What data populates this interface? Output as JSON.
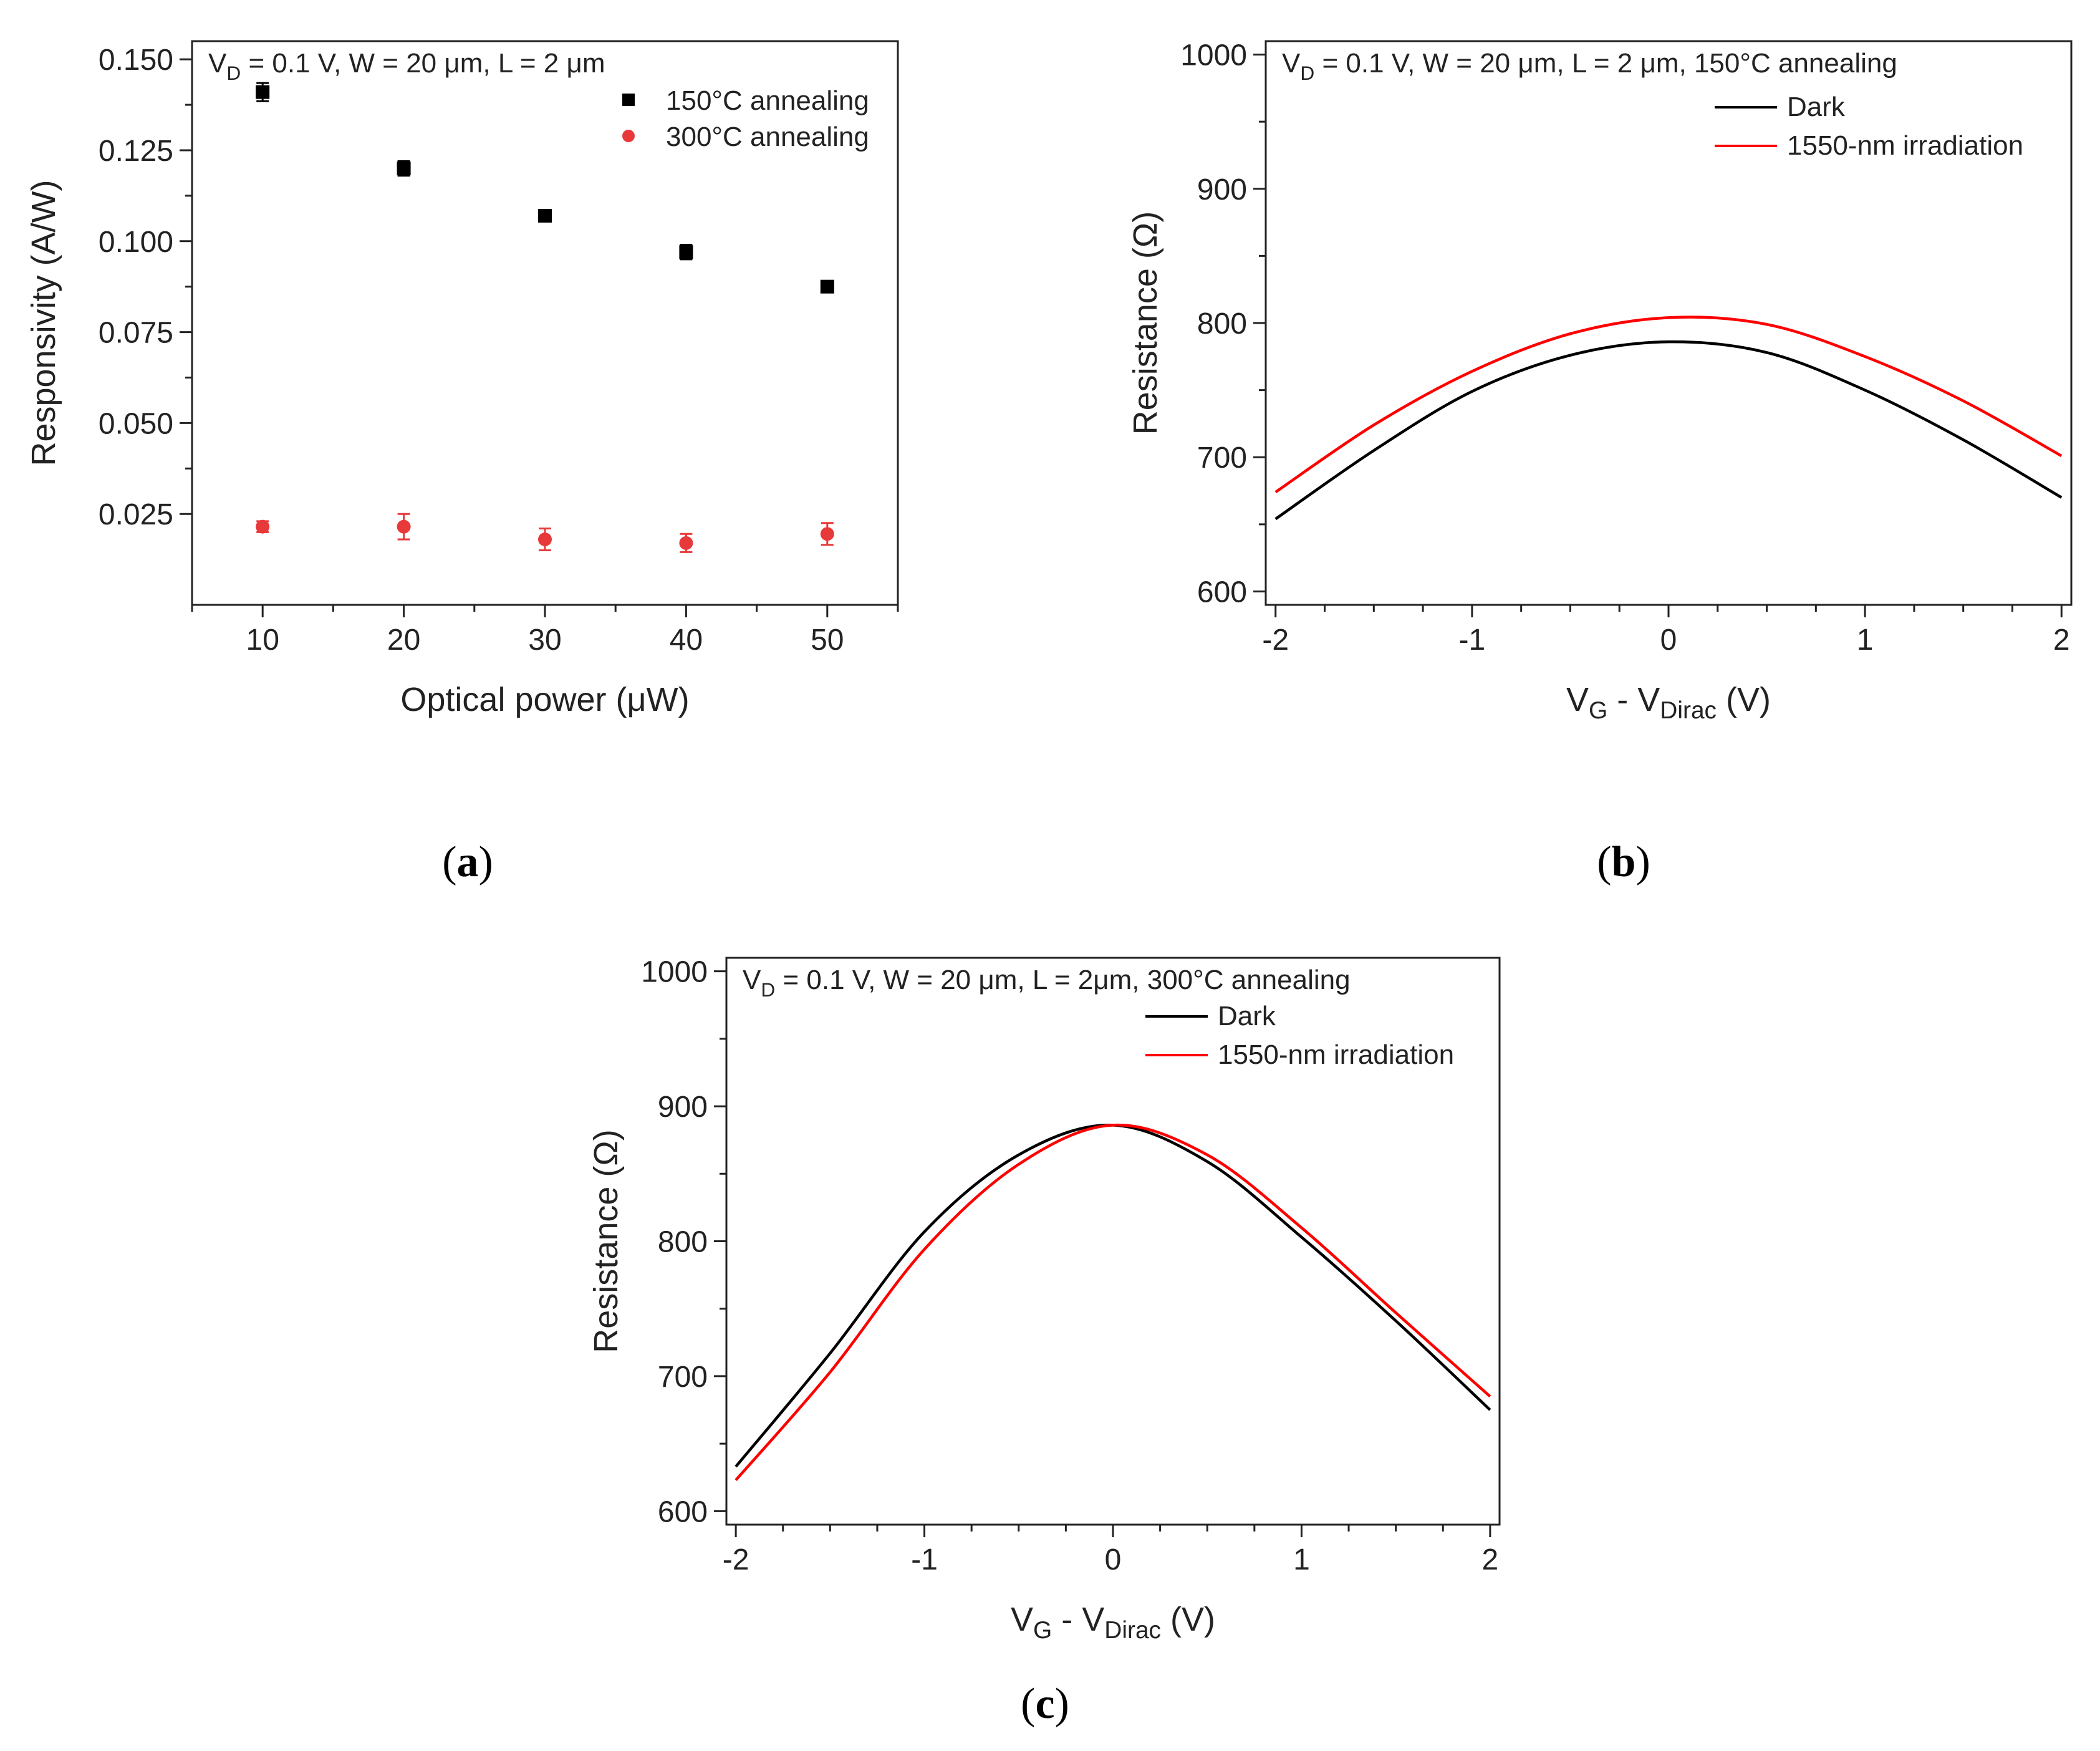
{
  "chart_data": [
    {
      "id": "a",
      "panel_label": "a",
      "type": "scatter",
      "annotation": "V_D = 0.1 V, W = 20 μm, L = 2 μm",
      "xlabel": "Optical power (μW)",
      "ylabel": "Responsivity (A/W)",
      "xlim": [
        5,
        55
      ],
      "ylim": [
        0,
        0.155
      ],
      "xticks": [
        10,
        20,
        30,
        40,
        50
      ],
      "yticks": [
        0.025,
        0.05,
        0.075,
        0.1,
        0.125,
        0.15
      ],
      "ytick_labels": [
        "0.025",
        "0.050",
        "0.075",
        "0.100",
        "0.125",
        "0.150"
      ],
      "series": [
        {
          "name": "150°C annealing",
          "color": "#000000",
          "marker": "square",
          "x": [
            10,
            20,
            30,
            40,
            50
          ],
          "y": [
            0.141,
            0.12,
            0.107,
            0.097,
            0.0875
          ],
          "err": [
            0.0025,
            0.002,
            0.001,
            0.002,
            0.001
          ]
        },
        {
          "name": "300°C annealing",
          "color": "#e8393a",
          "marker": "circle",
          "x": [
            10,
            20,
            30,
            40,
            50
          ],
          "y": [
            0.0215,
            0.0215,
            0.018,
            0.017,
            0.0195
          ],
          "err": [
            0.0015,
            0.0035,
            0.003,
            0.0025,
            0.003
          ]
        }
      ]
    },
    {
      "id": "b",
      "panel_label": "b",
      "type": "line",
      "annotation": "V_D = 0.1 V, W = 20 μm, L = 2 μm, 150°C annealing",
      "xlabel": "V_G - V_Dirac (V)",
      "ylabel": "Resistance (Ω)",
      "xlim": [
        -2.05,
        2.05
      ],
      "ylim": [
        590,
        1010
      ],
      "xticks": [
        -2,
        -1,
        0,
        1,
        2
      ],
      "yticks": [
        600,
        700,
        800,
        900,
        1000
      ],
      "x": [
        -2,
        -1.5,
        -1,
        -0.5,
        0,
        0.5,
        1,
        1.5,
        2
      ],
      "series": [
        {
          "name": "Dark",
          "color": "#000000",
          "values": [
            654,
            705,
            749,
            776,
            786,
            778,
            750,
            713,
            670
          ]
        },
        {
          "name": "1550-nm irradiation",
          "color": "#ff0000",
          "values": [
            674,
            724,
            764,
            792,
            804,
            799,
            775,
            742,
            701
          ]
        }
      ]
    },
    {
      "id": "c",
      "panel_label": "c",
      "type": "line",
      "annotation": "V_D = 0.1 V, W = 20 μm, L = 2μm, 300°C annealing",
      "xlabel": "V_G - V_Dirac (V)",
      "ylabel": "Resistance (Ω)",
      "xlim": [
        -2.05,
        2.05
      ],
      "ylim": [
        590,
        1010
      ],
      "xticks": [
        -2,
        -1,
        0,
        1,
        2
      ],
      "yticks": [
        600,
        700,
        800,
        900,
        1000
      ],
      "x": [
        -2,
        -1.5,
        -1,
        -0.5,
        0,
        0.5,
        1,
        1.5,
        2
      ],
      "series": [
        {
          "name": "Dark",
          "color": "#000000",
          "values": [
            633,
            717,
            807,
            864,
            886,
            859,
            803,
            741,
            675
          ]
        },
        {
          "name": "1550-nm irradiation",
          "color": "#ff0000",
          "values": [
            623,
            703,
            794,
            857,
            886,
            864,
            810,
            747,
            685
          ]
        }
      ]
    }
  ]
}
